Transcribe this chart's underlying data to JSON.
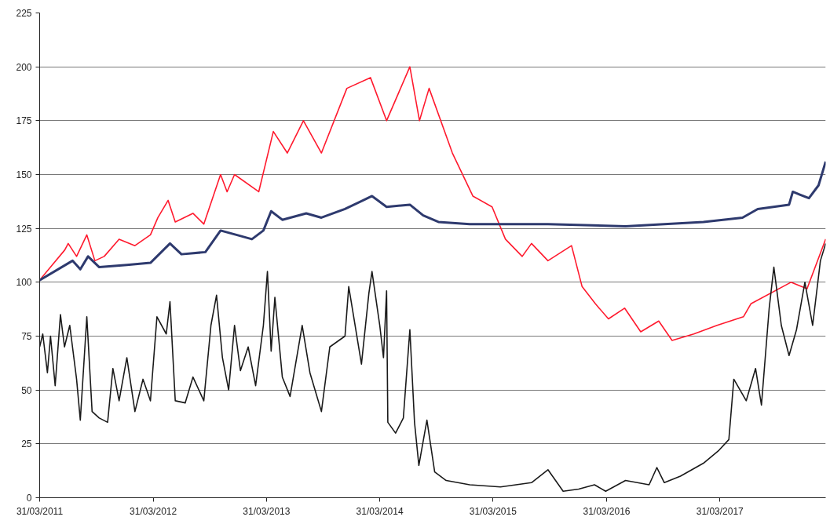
{
  "chart_data": {
    "type": "line",
    "xlim": [
      "2011-03-31",
      "2018-03-07"
    ],
    "ylim": [
      0,
      225
    ],
    "yticks": [
      0,
      25,
      50,
      75,
      100,
      125,
      150,
      175,
      200,
      225
    ],
    "xticks": [
      {
        "value": "2011-03-31",
        "label": "31/03/2011"
      },
      {
        "value": "2012-03-31",
        "label": "31/03/2012"
      },
      {
        "value": "2013-03-31",
        "label": "31/03/2013"
      },
      {
        "value": "2014-03-31",
        "label": "31/03/2014"
      },
      {
        "value": "2015-03-31",
        "label": "31/03/2015"
      },
      {
        "value": "2016-03-31",
        "label": "31/03/2016"
      },
      {
        "value": "2017-03-31",
        "label": "31/03/2017"
      }
    ],
    "grid": "y",
    "marker": "none",
    "line_style": "solid",
    "series": [
      {
        "color": "#ff1a2e",
        "x": [
          "2011-03-31",
          "2011-06-20",
          "2011-07-01",
          "2011-07-28",
          "2011-08-30",
          "2011-09-25",
          "2011-10-25",
          "2011-12-12",
          "2012-02-01",
          "2012-03-22",
          "2012-04-15",
          "2012-05-18",
          "2012-06-10",
          "2012-08-06",
          "2012-09-10",
          "2012-11-03",
          "2012-11-24",
          "2012-12-18",
          "2013-03-06",
          "2013-04-22",
          "2013-06-06",
          "2013-07-28",
          "2013-09-24",
          "2013-12-15",
          "2014-03-01",
          "2014-04-22",
          "2014-07-06",
          "2014-08-06",
          "2014-09-06",
          "2014-11-20",
          "2015-01-25",
          "2015-03-28",
          "2015-05-10",
          "2015-07-03",
          "2015-08-02",
          "2015-09-24",
          "2015-12-09",
          "2016-01-12",
          "2016-02-24",
          "2016-04-06",
          "2016-05-28",
          "2016-07-19",
          "2016-09-15",
          "2016-10-28",
          "2017-01-06",
          "2017-03-22",
          "2017-06-15",
          "2017-07-09",
          "2017-11-15",
          "2018-01-06",
          "2018-03-07"
        ],
        "values": [
          101,
          115,
          118,
          112,
          122,
          110,
          112,
          120,
          117,
          122,
          130,
          138,
          128,
          132,
          127,
          150,
          142,
          150,
          142,
          170,
          160,
          175,
          160,
          190,
          195,
          175,
          200,
          175,
          190,
          160,
          140,
          135,
          120,
          112,
          118,
          110,
          117,
          98,
          90,
          83,
          88,
          77,
          82,
          73,
          76,
          80,
          84,
          90,
          100,
          97,
          120
        ]
      },
      {
        "color": "#2e3a6e",
        "x": [
          "2011-03-31",
          "2011-07-15",
          "2011-08-09",
          "2011-09-03",
          "2011-10-09",
          "2012-01-06",
          "2012-03-22",
          "2012-05-24",
          "2012-06-30",
          "2012-09-15",
          "2012-11-03",
          "2012-12-24",
          "2013-02-12",
          "2013-03-21",
          "2013-04-15",
          "2013-05-21",
          "2013-08-06",
          "2013-09-24",
          "2013-12-09",
          "2014-03-06",
          "2014-04-22",
          "2014-07-06",
          "2014-08-18",
          "2014-10-06",
          "2015-01-15",
          "2015-09-24",
          "2016-05-31",
          "2016-10-03",
          "2017-02-06",
          "2017-06-12",
          "2017-07-31",
          "2017-11-09",
          "2017-11-21",
          "2018-01-12",
          "2018-02-12",
          "2018-03-07"
        ],
        "values": [
          101,
          110,
          106,
          112,
          107,
          108,
          109,
          118,
          113,
          114,
          124,
          122,
          120,
          124,
          133,
          129,
          132,
          130,
          134,
          140,
          135,
          136,
          131,
          128,
          127,
          127,
          126,
          127,
          128,
          130,
          134,
          136,
          142,
          139,
          145,
          156
        ]
      },
      {
        "color": "#1a1a1a",
        "x": [
          "2011-03-31",
          "2011-04-10",
          "2011-04-25",
          "2011-05-05",
          "2011-05-20",
          "2011-06-06",
          "2011-06-19",
          "2011-07-06",
          "2011-07-28",
          "2011-08-09",
          "2011-08-30",
          "2011-09-16",
          "2011-10-09",
          "2011-11-05",
          "2011-11-22",
          "2011-12-12",
          "2012-01-06",
          "2012-02-01",
          "2012-02-27",
          "2012-03-22",
          "2012-04-12",
          "2012-05-12",
          "2012-05-24",
          "2012-06-10",
          "2012-07-12",
          "2012-08-06",
          "2012-09-10",
          "2012-10-03",
          "2012-10-21",
          "2012-11-09",
          "2012-11-29",
          "2012-12-18",
          "2013-01-06",
          "2013-01-31",
          "2013-02-24",
          "2013-03-21",
          "2013-04-03",
          "2013-04-15",
          "2013-04-27",
          "2013-05-21",
          "2013-06-15",
          "2013-07-24",
          "2013-08-18",
          "2013-09-24",
          "2013-10-21",
          "2013-12-09",
          "2013-12-21",
          "2014-01-31",
          "2014-02-24",
          "2014-03-06",
          "2014-03-31",
          "2014-04-12",
          "2014-04-22",
          "2014-04-26",
          "2014-05-21",
          "2014-06-15",
          "2014-07-06",
          "2014-07-21",
          "2014-08-04",
          "2014-08-30",
          "2014-09-24",
          "2014-10-31",
          "2015-01-15",
          "2015-04-24",
          "2015-08-02",
          "2015-09-24",
          "2015-11-12",
          "2016-01-01",
          "2016-02-21",
          "2016-03-28",
          "2016-05-31",
          "2016-08-15",
          "2016-09-09",
          "2016-10-03",
          "2016-11-24",
          "2017-02-06",
          "2017-03-28",
          "2017-04-29",
          "2017-05-15",
          "2017-06-24",
          "2017-07-24",
          "2017-08-12",
          "2017-09-06",
          "2017-09-21",
          "2017-10-15",
          "2017-11-09",
          "2017-12-03",
          "2017-12-30",
          "2018-01-24",
          "2018-02-18",
          "2018-03-07"
        ],
        "values": [
          70,
          76,
          58,
          75,
          52,
          85,
          70,
          80,
          55,
          36,
          84,
          40,
          37,
          35,
          60,
          45,
          65,
          40,
          55,
          45,
          84,
          76,
          91,
          45,
          44,
          56,
          45,
          80,
          94,
          65,
          50,
          80,
          59,
          70,
          52,
          80,
          105,
          68,
          93,
          56,
          47,
          80,
          58,
          40,
          70,
          75,
          98,
          62,
          95,
          105,
          80,
          65,
          96,
          35,
          30,
          37,
          78,
          35,
          15,
          36,
          12,
          8,
          6,
          5,
          7,
          13,
          3,
          4,
          6,
          3,
          8,
          6,
          14,
          7,
          10,
          16,
          22,
          27,
          55,
          45,
          60,
          43,
          88,
          107,
          80,
          66,
          78,
          100,
          80,
          110,
          118
        ]
      }
    ]
  }
}
